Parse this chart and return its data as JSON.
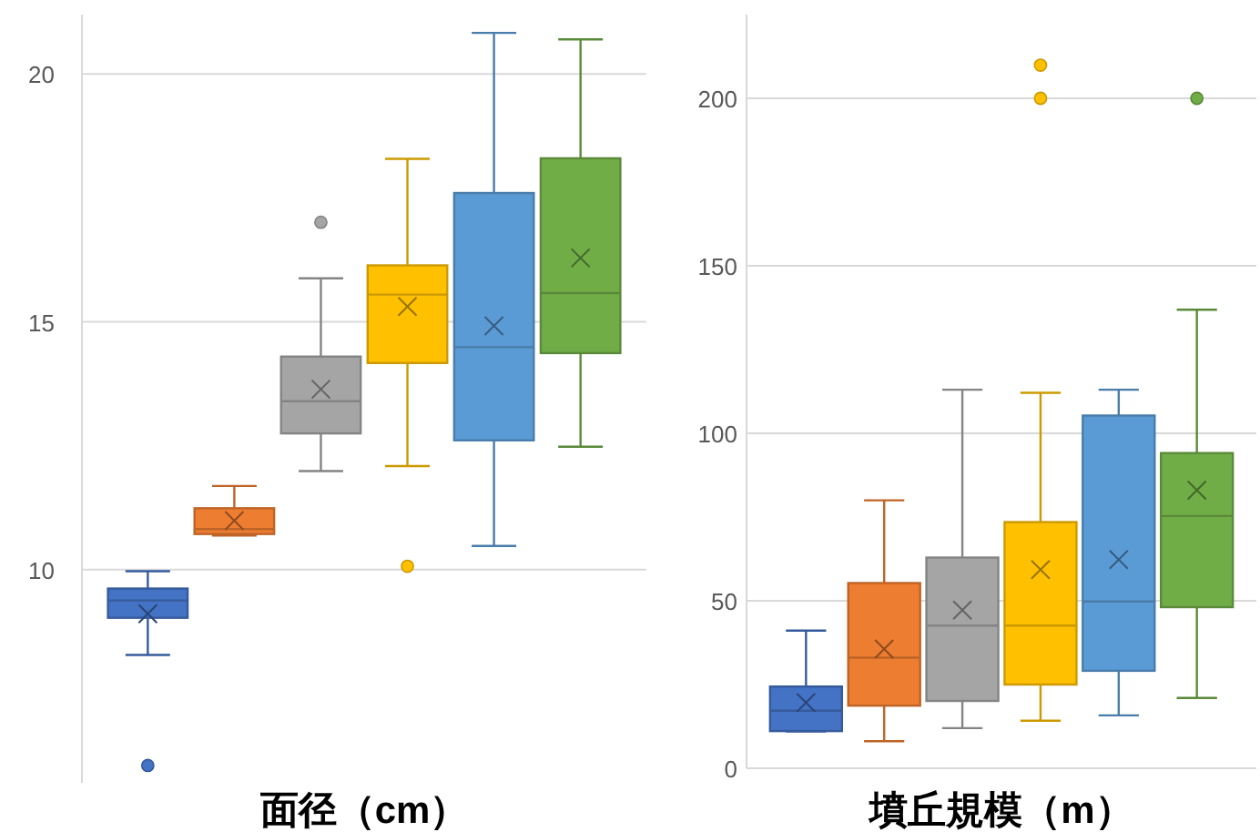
{
  "chart_data": [
    {
      "type": "box",
      "xlabel": "面径（cm）",
      "categories": [
        null
      ],
      "ylim": [
        5.7,
        21.2
      ],
      "yticks": [
        10,
        15,
        20
      ],
      "grid": "y",
      "series": [
        {
          "color": "#4472c4",
          "boxes": [
            {
              "low": 8.28,
              "q1": 9.03,
              "median": 9.38,
              "q3": 9.62,
              "high": 9.97,
              "mean": 9.11,
              "outliers": [
                6.05
              ]
            }
          ]
        },
        {
          "color": "#ed7d31",
          "boxes": [
            {
              "low": 10.69,
              "q1": 10.72,
              "median": 10.82,
              "q3": 11.24,
              "high": 11.69,
              "mean": 10.99
            }
          ]
        },
        {
          "color": "#a5a5a5",
          "boxes": [
            {
              "low": 11.99,
              "q1": 12.75,
              "median": 13.4,
              "q3": 14.3,
              "high": 15.88,
              "mean": 13.64,
              "outliers": [
                17.01
              ]
            }
          ]
        },
        {
          "color": "#ffc000",
          "boxes": [
            {
              "low": 12.09,
              "q1": 14.17,
              "median": 15.55,
              "q3": 16.14,
              "high": 18.29,
              "mean": 15.31,
              "outliers": [
                10.07
              ]
            }
          ]
        },
        {
          "color": "#5b9bd5",
          "boxes": [
            {
              "low": 10.48,
              "q1": 12.61,
              "median": 14.49,
              "q3": 17.6,
              "high": 20.83,
              "mean": 14.92
            }
          ]
        },
        {
          "color": "#70ad47",
          "boxes": [
            {
              "low": 12.48,
              "q1": 14.37,
              "median": 15.58,
              "q3": 18.3,
              "high": 20.7,
              "mean": 16.29
            }
          ]
        }
      ]
    },
    {
      "type": "box",
      "xlabel": "墳丘規模（m）",
      "categories": [
        null
      ],
      "ylim": [
        0,
        225
      ],
      "yticks": [
        0,
        50,
        100,
        150,
        200
      ],
      "grid": "y",
      "series": [
        {
          "color": "#4472c4",
          "boxes": [
            {
              "low": 11,
              "q1": 11.1,
              "median": 17.2,
              "q3": 24.4,
              "high": 41.1,
              "mean": 19.6
            }
          ]
        },
        {
          "color": "#ed7d31",
          "boxes": [
            {
              "low": 8.1,
              "q1": 18.7,
              "median": 33,
              "q3": 55.3,
              "high": 80,
              "mean": 35.6
            }
          ]
        },
        {
          "color": "#a5a5a5",
          "boxes": [
            {
              "low": 12,
              "q1": 20.1,
              "median": 42.6,
              "q3": 62.9,
              "high": 113,
              "mean": 47.2
            }
          ]
        },
        {
          "color": "#ffc000",
          "boxes": [
            {
              "low": 14.2,
              "q1": 25,
              "median": 42.6,
              "q3": 73.5,
              "high": 112.1,
              "mean": 59.3,
              "outliers": [
                200,
                209.9
              ]
            }
          ]
        },
        {
          "color": "#5b9bd5",
          "boxes": [
            {
              "low": 15.8,
              "q1": 29.1,
              "median": 49.8,
              "q3": 105.3,
              "high": 113,
              "mean": 62.3
            }
          ]
        },
        {
          "color": "#70ad47",
          "boxes": [
            {
              "low": 21,
              "q1": 48.1,
              "median": 75.3,
              "q3": 94.1,
              "high": 136.9,
              "mean": 83,
              "outliers": [
                200
              ]
            }
          ]
        }
      ]
    }
  ]
}
